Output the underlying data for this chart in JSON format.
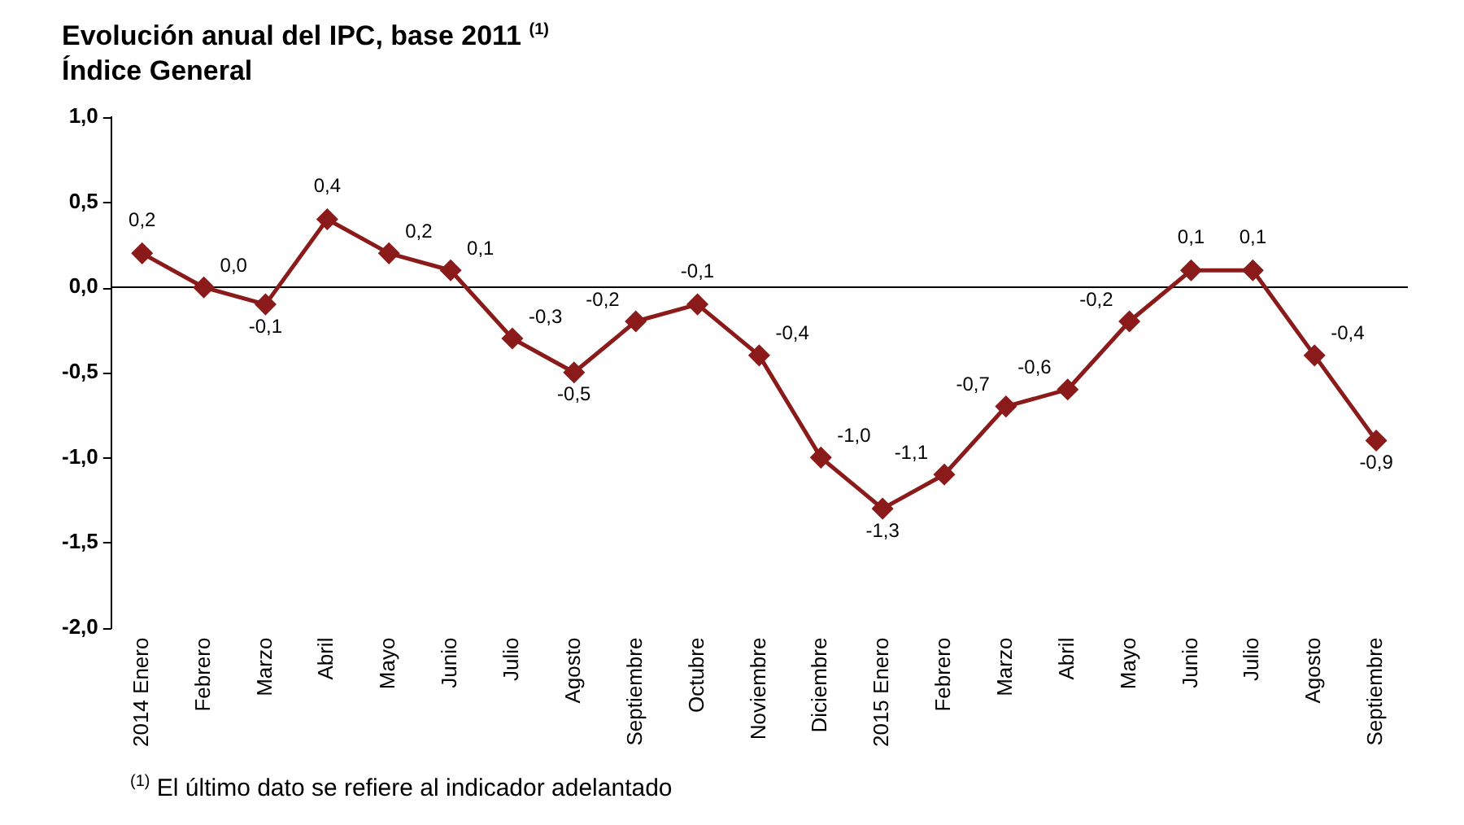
{
  "chart_data": {
    "type": "line",
    "title": "Evolución anual del IPC, base 2011 $^{(1)}$",
    "subtitle": "Índice General",
    "annotations": [
      "$^{(1)}$ El último dato se refiere al indicador adelantado"
    ],
    "categories": [
      "2014 Enero",
      "Febrero",
      "Marzo",
      "Abril",
      "Mayo",
      "Junio",
      "Julio",
      "Agosto",
      "Septiembre",
      "Octubre",
      "Noviembre",
      "Diciembre",
      "2015 Enero",
      "Febrero",
      "Marzo",
      "Abril",
      "Mayo",
      "Junio",
      "Julio",
      "Agosto",
      "Septiembre"
    ],
    "series": [
      {
        "color": "#8b1a1a",
        "values": [
          0.2,
          0.0,
          -0.1,
          0.4,
          0.2,
          0.1,
          -0.3,
          -0.5,
          -0.2,
          -0.1,
          -0.4,
          -1.0,
          -1.3,
          -1.1,
          -0.7,
          -0.6,
          -0.2,
          0.1,
          0.1,
          -0.4,
          -0.9
        ],
        "value_labels": [
          "0,2",
          "0,0",
          "-0,1",
          "0,4",
          "0,2",
          "0,1",
          "-0,3",
          "-0,5",
          "-0,2",
          "-0,1",
          "-0,4",
          "-1,0",
          "-1,3",
          "-1,1",
          "-0,7",
          "-0,6",
          "-0,2",
          "0,1",
          "0,1",
          "-0,4",
          "-0,9"
        ]
      }
    ],
    "ylim": [
      -2.0,
      1.0
    ],
    "yticks": [
      {
        "value": 1.0,
        "label": "1,0"
      },
      {
        "value": 0.5,
        "label": "0,5"
      },
      {
        "value": 0.0,
        "label": "0,0"
      },
      {
        "value": -0.5,
        "label": "-0,5"
      },
      {
        "value": -1.0,
        "label": "-1,0"
      },
      {
        "value": -1.5,
        "label": "-1,5"
      },
      {
        "value": -2.0,
        "label": "-2,0"
      }
    ],
    "legend": false,
    "marker": "diamond",
    "line_style": "solid"
  }
}
